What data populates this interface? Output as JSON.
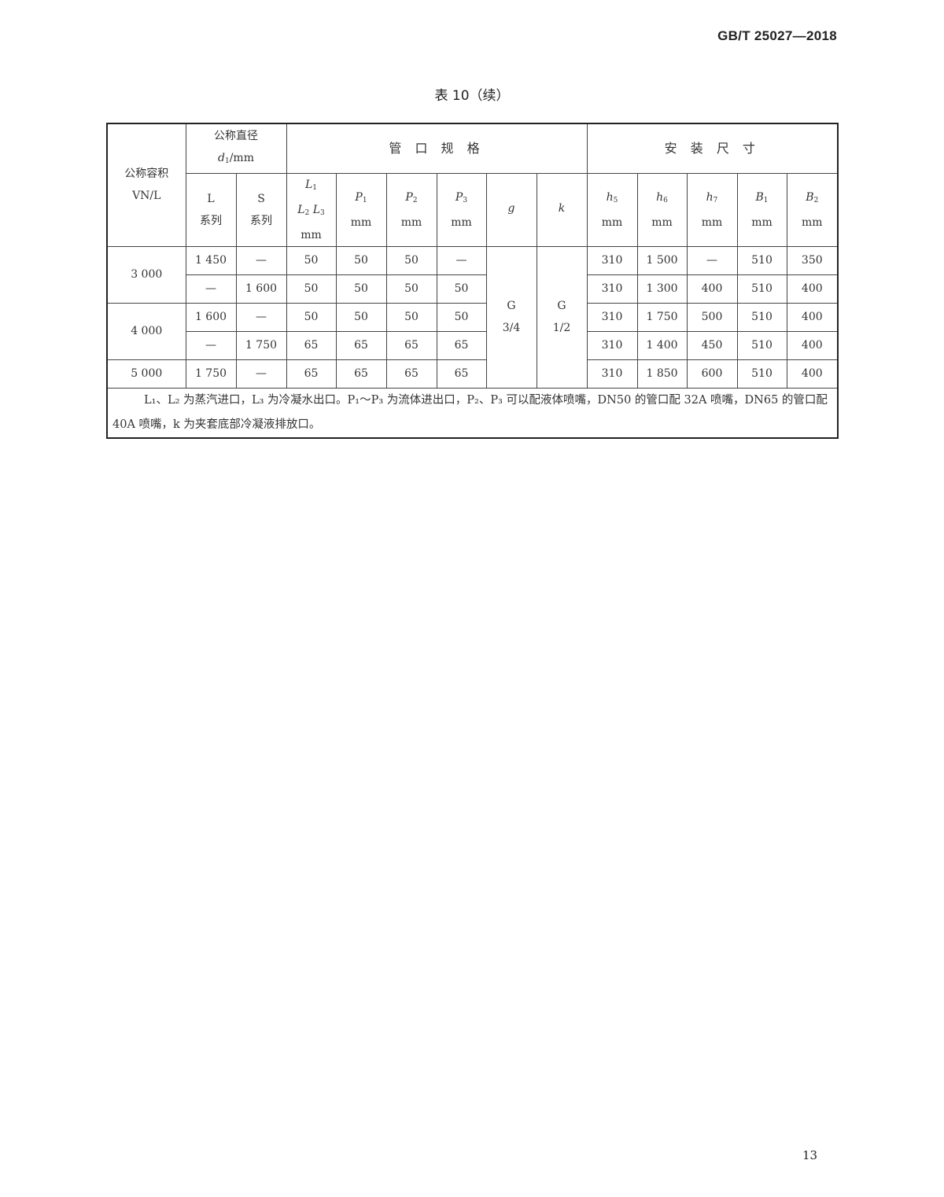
{
  "header": {
    "standard_code": "GB/T 25027—2018"
  },
  "caption": "表 10（续）",
  "table": {
    "headers": {
      "volume": [
        "公称容积",
        "VN/L"
      ],
      "diameter": [
        "公称直径",
        "d",
        "1",
        "/mm"
      ],
      "pipe_spec": "管 口 规 格",
      "install": "安 装 尺 寸",
      "l_series": [
        "L",
        "系列"
      ],
      "s_series": [
        "S",
        "系列"
      ],
      "l123": {
        "l1": "L",
        "l1_sub": "1",
        "l2": "L",
        "l2_sub": "2",
        "l3": "L",
        "l3_sub": "3",
        "unit": "mm"
      },
      "cols": [
        {
          "sym": "P",
          "sub": "1",
          "unit": "mm"
        },
        {
          "sym": "P",
          "sub": "2",
          "unit": "mm"
        },
        {
          "sym": "P",
          "sub": "3",
          "unit": "mm"
        },
        {
          "sym": "g",
          "sub": "",
          "unit": ""
        },
        {
          "sym": "k",
          "sub": "",
          "unit": ""
        },
        {
          "sym": "h",
          "sub": "5",
          "unit": "mm"
        },
        {
          "sym": "h",
          "sub": "6",
          "unit": "mm"
        },
        {
          "sym": "h",
          "sub": "7",
          "unit": "mm"
        },
        {
          "sym": "B",
          "sub": "1",
          "unit": "mm"
        },
        {
          "sym": "B",
          "sub": "2",
          "unit": "mm"
        }
      ]
    },
    "groups": [
      {
        "volume": "3 000"
      },
      {
        "volume": "4 000"
      },
      {
        "volume": "5 000"
      }
    ],
    "g_value": [
      "G",
      "3/4"
    ],
    "k_value": [
      "G",
      "1/2"
    ],
    "rows": [
      [
        "1 450",
        "—",
        "50",
        "50",
        "50",
        "—",
        "310",
        "1 500",
        "—",
        "510",
        "350"
      ],
      [
        "—",
        "1 600",
        "50",
        "50",
        "50",
        "50",
        "310",
        "1 300",
        "400",
        "510",
        "400"
      ],
      [
        "1 600",
        "—",
        "50",
        "50",
        "50",
        "50",
        "310",
        "1 750",
        "500",
        "510",
        "400"
      ],
      [
        "—",
        "1 750",
        "65",
        "65",
        "65",
        "65",
        "310",
        "1 400",
        "450",
        "510",
        "400"
      ],
      [
        "1 750",
        "—",
        "65",
        "65",
        "65",
        "65",
        "310",
        "1 850",
        "600",
        "510",
        "400"
      ]
    ],
    "note": "L₁、L₂ 为蒸汽进口，L₃ 为冷凝水出口。P₁～P₃ 为流体进出口，P₂、P₃ 可以配液体喷嘴，DN50 的管口配 32A 喷嘴，DN65 的管口配 40A 喷嘴，k 为夹套底部冷凝液排放口。"
  },
  "footer": {
    "page_number": "13"
  }
}
